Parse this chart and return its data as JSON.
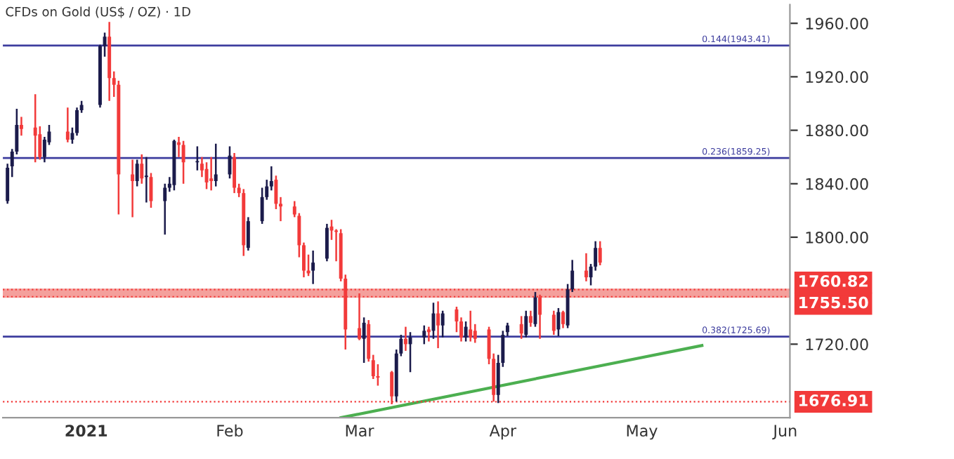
{
  "chart_data": {
    "type": "candlestick",
    "title": "CFDs on Gold (US$ / OZ) · 1D",
    "x": [
      "2020-12-15",
      "2020-12-16",
      "2020-12-17",
      "2020-12-18",
      "2020-12-21",
      "2020-12-22",
      "2020-12-23",
      "2020-12-24",
      "2020-12-28",
      "2020-12-29",
      "2020-12-30",
      "2020-12-31",
      "2021-01-04",
      "2021-01-05",
      "2021-01-06",
      "2021-01-07",
      "2021-01-08",
      "2021-01-11",
      "2021-01-12",
      "2021-01-13",
      "2021-01-14",
      "2021-01-15",
      "2021-01-18",
      "2021-01-19",
      "2021-01-20",
      "2021-01-21",
      "2021-01-22",
      "2021-01-25",
      "2021-01-26",
      "2021-01-27",
      "2021-01-28",
      "2021-01-29",
      "2021-02-01",
      "2021-02-02",
      "2021-02-03",
      "2021-02-04",
      "2021-02-05",
      "2021-02-08",
      "2021-02-09",
      "2021-02-10",
      "2021-02-11",
      "2021-02-12",
      "2021-02-15",
      "2021-02-16",
      "2021-02-17",
      "2021-02-18",
      "2021-02-19",
      "2021-02-22",
      "2021-02-23",
      "2021-02-24",
      "2021-02-25",
      "2021-02-26",
      "2021-03-01",
      "2021-03-02",
      "2021-03-03",
      "2021-03-04",
      "2021-03-05",
      "2021-03-08",
      "2021-03-09",
      "2021-03-10",
      "2021-03-11",
      "2021-03-12",
      "2021-03-15",
      "2021-03-16",
      "2021-03-17",
      "2021-03-18",
      "2021-03-19",
      "2021-03-22",
      "2021-03-23",
      "2021-03-24",
      "2021-03-25",
      "2021-03-26",
      "2021-03-29",
      "2021-03-30",
      "2021-03-31",
      "2021-04-01",
      "2021-04-02",
      "2021-04-05",
      "2021-04-06",
      "2021-04-07",
      "2021-04-08",
      "2021-04-09",
      "2021-04-12",
      "2021-04-13",
      "2021-04-14",
      "2021-04-15",
      "2021-04-16",
      "2021-04-19",
      "2021-04-20",
      "2021-04-21",
      "2021-04-22"
    ],
    "ohlc": [
      [
        1827,
        1855,
        1825,
        1852
      ],
      [
        1853,
        1866,
        1845,
        1864
      ],
      [
        1864,
        1896,
        1862,
        1884
      ],
      [
        1884,
        1890,
        1876,
        1881
      ],
      [
        1882,
        1907,
        1856,
        1876
      ],
      [
        1877,
        1883,
        1858,
        1860
      ],
      [
        1860,
        1875,
        1856,
        1873
      ],
      [
        1871,
        1884,
        1869,
        1879
      ],
      [
        1879,
        1897,
        1871,
        1873
      ],
      [
        1873,
        1882,
        1870,
        1878
      ],
      [
        1878,
        1897,
        1876,
        1895
      ],
      [
        1895,
        1902,
        1893,
        1899
      ],
      [
        1899,
        1944,
        1897,
        1943
      ],
      [
        1943,
        1953,
        1935,
        1950
      ],
      [
        1950,
        1961,
        1902,
        1919
      ],
      [
        1919,
        1924,
        1905,
        1914
      ],
      [
        1914,
        1917,
        1817,
        1847
      ],
      [
        1847,
        1858,
        1815,
        1842
      ],
      [
        1842,
        1858,
        1838,
        1855
      ],
      [
        1855,
        1862,
        1840,
        1844
      ],
      [
        1845,
        1860,
        1826,
        1846
      ],
      [
        1845,
        1848,
        1822,
        1827
      ],
      [
        1827,
        1840,
        1802,
        1837
      ],
      [
        1837,
        1845,
        1834,
        1840
      ],
      [
        1839,
        1873,
        1835,
        1872
      ],
      [
        1871,
        1875,
        1860,
        1869
      ],
      [
        1869,
        1872,
        1840,
        1856
      ],
      [
        1856,
        1868,
        1850,
        1857
      ],
      [
        1855,
        1860,
        1845,
        1850
      ],
      [
        1851,
        1856,
        1836,
        1841
      ],
      [
        1844,
        1860,
        1835,
        1842
      ],
      [
        1842,
        1870,
        1838,
        1847
      ],
      [
        1847,
        1868,
        1844,
        1861
      ],
      [
        1860,
        1863,
        1833,
        1837
      ],
      [
        1837,
        1840,
        1830,
        1833
      ],
      [
        1833,
        1836,
        1786,
        1794
      ],
      [
        1792,
        1815,
        1790,
        1812
      ],
      [
        1812,
        1837,
        1810,
        1830
      ],
      [
        1830,
        1843,
        1828,
        1838
      ],
      [
        1838,
        1853,
        1835,
        1842
      ],
      [
        1843,
        1846,
        1821,
        1825
      ],
      [
        1825,
        1830,
        1812,
        1823
      ],
      [
        1823,
        1827,
        1815,
        1817
      ],
      [
        1816,
        1818,
        1785,
        1794
      ],
      [
        1794,
        1796,
        1770,
        1775
      ],
      [
        1775,
        1787,
        1771,
        1773
      ],
      [
        1775,
        1790,
        1765,
        1781
      ],
      [
        1784,
        1810,
        1782,
        1807
      ],
      [
        1808,
        1813,
        1798,
        1805
      ],
      [
        1805,
        1806,
        1782,
        1804
      ],
      [
        1803,
        1806,
        1767,
        1769
      ],
      [
        1769,
        1772,
        1716,
        1731
      ],
      [
        1732,
        1758,
        1723,
        1724
      ],
      [
        1724,
        1740,
        1706,
        1736
      ],
      [
        1735,
        1738,
        1707,
        1709
      ],
      [
        1708,
        1712,
        1694,
        1696
      ],
      [
        1696,
        1705,
        1689,
        1695
      ],
      [
        1699,
        1700,
        1675,
        1681
      ],
      [
        1681,
        1716,
        1677,
        1713
      ],
      [
        1713,
        1727,
        1711,
        1724
      ],
      [
        1724,
        1733,
        1715,
        1720
      ],
      [
        1720,
        1729,
        1699,
        1725
      ],
      [
        1725,
        1734,
        1720,
        1730
      ],
      [
        1731,
        1733,
        1722,
        1729
      ],
      [
        1730,
        1751,
        1724,
        1743
      ],
      [
        1743,
        1752,
        1717,
        1734
      ],
      [
        1734,
        1745,
        1725,
        1743
      ],
      [
        1746,
        1748,
        1729,
        1737
      ],
      [
        1737,
        1740,
        1722,
        1725
      ],
      [
        1725,
        1737,
        1722,
        1733
      ],
      [
        1731,
        1745,
        1722,
        1725
      ],
      [
        1730,
        1735,
        1721,
        1724
      ],
      [
        1731,
        1733,
        1705,
        1709
      ],
      [
        1709,
        1713,
        1677,
        1682
      ],
      [
        1682,
        1712,
        1676,
        1706
      ],
      [
        1706,
        1730,
        1703,
        1727
      ],
      [
        1729,
        1736,
        1726,
        1734
      ],
      [
        1735,
        1741,
        1724,
        1728
      ],
      [
        1727,
        1745,
        1725,
        1741
      ],
      [
        1741,
        1745,
        1733,
        1736
      ],
      [
        1735,
        1759,
        1733,
        1755
      ],
      [
        1755,
        1757,
        1724,
        1742
      ],
      [
        1742,
        1745,
        1727,
        1730
      ],
      [
        1731,
        1747,
        1726,
        1744
      ],
      [
        1744,
        1745,
        1732,
        1735
      ],
      [
        1734,
        1765,
        1732,
        1761
      ],
      [
        1761,
        1783,
        1759,
        1775
      ],
      [
        1775,
        1788,
        1767,
        1770
      ],
      [
        1770,
        1780,
        1764,
        1778
      ],
      [
        1778,
        1797,
        1775,
        1792
      ],
      [
        1792,
        1797,
        1779,
        1781
      ]
    ],
    "colors": [
      "#1b1b4b",
      "#1b1b4b",
      "#1b1b4b",
      "#f23a3a",
      "#f23a3a",
      "#f23a3a",
      "#1b1b4b",
      "#1b1b4b",
      "#f23a3a",
      "#1b1b4b",
      "#1b1b4b",
      "#1b1b4b",
      "#1b1b4b",
      "#1b1b4b",
      "#f23a3a",
      "#f23a3a",
      "#f23a3a",
      "#f23a3a",
      "#1b1b4b",
      "#f23a3a",
      "#1b1b4b",
      "#f23a3a",
      "#1b1b4b",
      "#1b1b4b",
      "#1b1b4b",
      "#f23a3a",
      "#f23a3a",
      "#1b1b4b",
      "#f23a3a",
      "#f23a3a",
      "#f23a3a",
      "#1b1b4b",
      "#1b1b4b",
      "#f23a3a",
      "#f23a3a",
      "#f23a3a",
      "#1b1b4b",
      "#1b1b4b",
      "#1b1b4b",
      "#1b1b4b",
      "#f23a3a",
      "#f23a3a",
      "#f23a3a",
      "#f23a3a",
      "#f23a3a",
      "#f23a3a",
      "#1b1b4b",
      "#1b1b4b",
      "#f23a3a",
      "#f23a3a",
      "#f23a3a",
      "#f23a3a",
      "#f23a3a",
      "#1b1b4b",
      "#f23a3a",
      "#f23a3a",
      "#f23a3a",
      "#f23a3a",
      "#1b1b4b",
      "#1b1b4b",
      "#f23a3a",
      "#1b1b4b",
      "#1b1b4b",
      "#f23a3a",
      "#1b1b4b",
      "#f23a3a",
      "#1b1b4b",
      "#f23a3a",
      "#f23a3a",
      "#1b1b4b",
      "#f23a3a",
      "#f23a3a",
      "#f23a3a",
      "#f23a3a",
      "#1b1b4b",
      "#1b1b4b",
      "#1b1b4b",
      "#f23a3a",
      "#1b1b4b",
      "#f23a3a",
      "#1b1b4b",
      "#f23a3a",
      "#f23a3a",
      "#1b1b4b",
      "#f23a3a",
      "#1b1b4b",
      "#1b1b4b",
      "#f23a3a",
      "#1b1b4b",
      "#1b1b4b",
      "#f23a3a"
    ],
    "series": [
      {
        "type": "line",
        "x": [
          "2021-02-25",
          "2021-05-14"
        ],
        "values": [
          1665,
          1719
        ],
        "color": "#4caf50"
      }
    ],
    "ref_lines": [
      {
        "axis": "y",
        "value": 1943.41,
        "label": "0.144(1943.41)",
        "color": "#3d3d9e"
      },
      {
        "axis": "y",
        "value": 1859.25,
        "label": "0.236(1859.25)",
        "color": "#3d3d9e"
      },
      {
        "axis": "y",
        "value": 1725.69,
        "label": "0.382(1725.69)",
        "color": "#3d3d9e"
      },
      {
        "axis": "y",
        "value": 1760.82,
        "label": "1760.82",
        "color": "#f23a3a",
        "line_style": "dotted"
      },
      {
        "axis": "y",
        "value": 1755.5,
        "label": "1755.50",
        "color": "#f23a3a",
        "line_style": "dotted"
      },
      {
        "axis": "y",
        "value": 1676.91,
        "label": "1676.91",
        "color": "#f23a3a",
        "line_style": "dotted"
      }
    ],
    "bands": [
      {
        "axis": "y",
        "from": 1755.5,
        "to": 1760.82,
        "color": "#f4a09c"
      }
    ],
    "xlim": [
      "2020-12-14",
      "2021-06-02"
    ],
    "xticks": [
      {
        "value": "2021-01-01",
        "label": "2021"
      },
      {
        "value": "2021-02-01",
        "label": "Feb"
      },
      {
        "value": "2021-03-01",
        "label": "Mar"
      },
      {
        "value": "2021-04-01",
        "label": "Apr"
      },
      {
        "value": "2021-05-01",
        "label": "May"
      },
      {
        "value": "2021-06-01",
        "label": "Jun"
      }
    ],
    "ylim": [
      1665,
      1974
    ],
    "yticks": [
      {
        "value": 1720,
        "label": "1720.00"
      },
      {
        "value": 1800,
        "label": "1800.00"
      },
      {
        "value": 1840,
        "label": "1840.00"
      },
      {
        "value": 1880,
        "label": "1880.00"
      },
      {
        "value": 1920,
        "label": "1920.00"
      },
      {
        "value": 1960,
        "label": "1960.00"
      }
    ],
    "grid": false,
    "legend": false
  }
}
